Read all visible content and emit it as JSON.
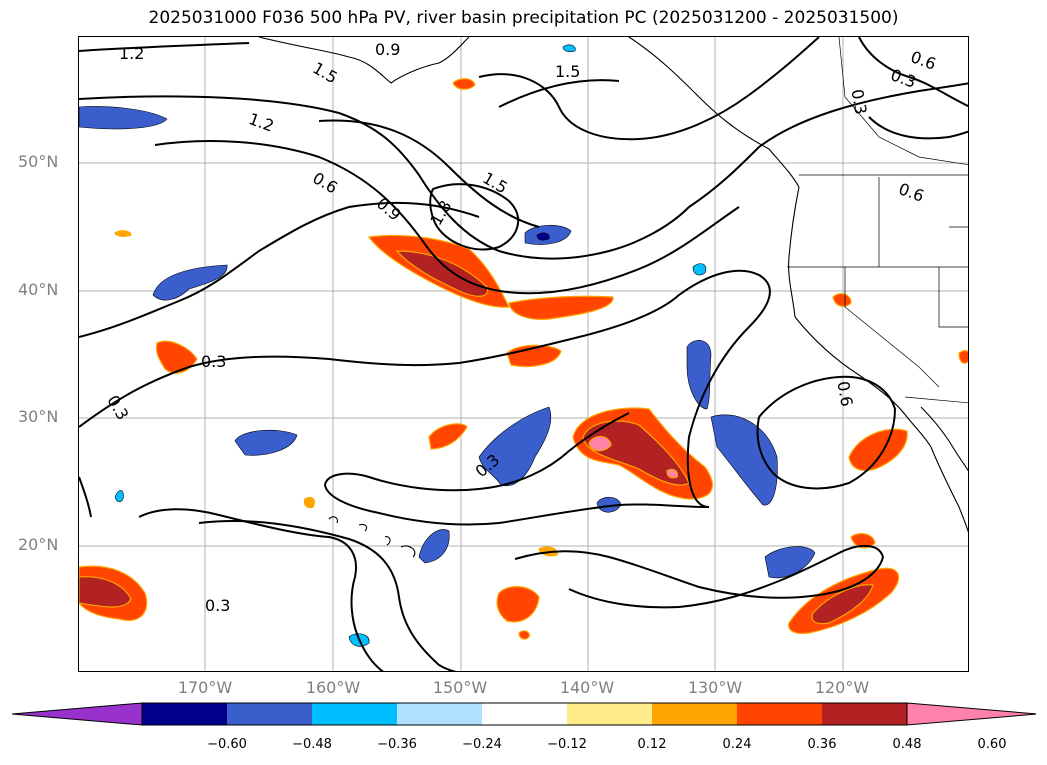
{
  "title": "2025031000 F036 500 hPa PV, river basin precipitation PC (2025031200 - 2025031500)",
  "lat_labels": [
    "50°N",
    "40°N",
    "30°N",
    "20°N"
  ],
  "lon_labels": [
    "170°W",
    "160°W",
    "150°W",
    "140°W",
    "130°W",
    "120°W"
  ],
  "contour_labels": [
    "1.2",
    "1.5",
    "0.9",
    "1.5",
    "0.6",
    "0.3",
    "1.2",
    "0.6",
    "0.9",
    "1.8",
    "1.5",
    "0.6",
    "0.3",
    "0.3",
    "0.6",
    "0.3",
    "0.3",
    "0.3"
  ],
  "colorbar": {
    "tick_labels": [
      "−0.60",
      "−0.48",
      "−0.36",
      "−0.24",
      "−0.12",
      "0.12",
      "0.24",
      "0.36",
      "0.48",
      "0.60"
    ],
    "colors": [
      "#9932cc",
      "#00008b",
      "#3a5fcd",
      "#00bfff",
      "#b0e2ff",
      "#ffffff",
      "#ffec8b",
      "#ffa500",
      "#ff4500",
      "#b22222",
      "#ff82ab"
    ]
  },
  "colors": {
    "land_outline": "#000000",
    "gridline": "#b0b0b0",
    "pv_contour": "#000000",
    "axis_label": "#808080"
  }
}
